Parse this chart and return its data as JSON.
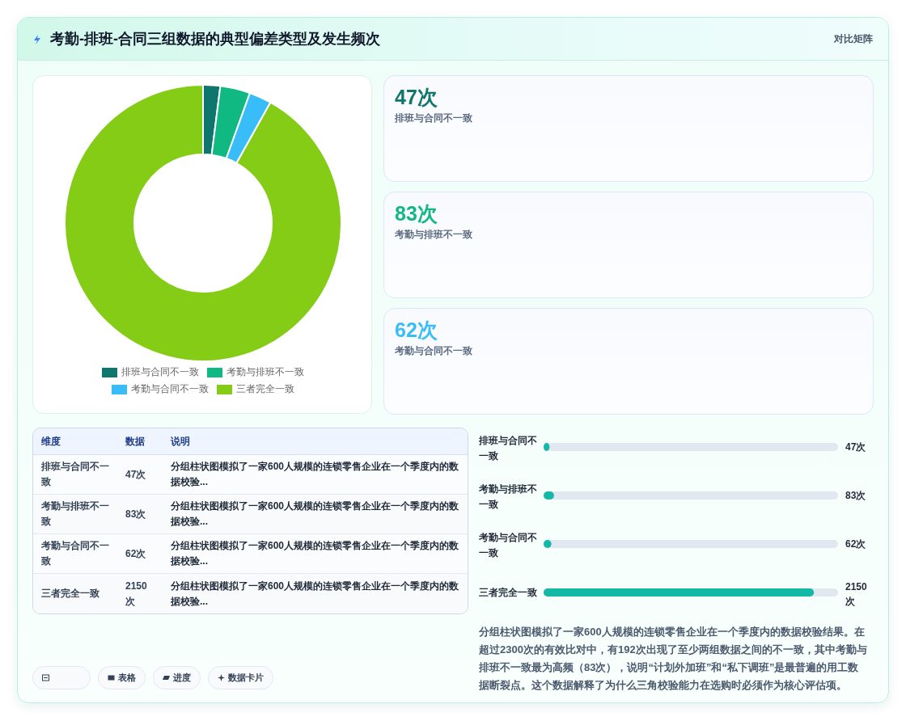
{
  "chart_data": [
    {
      "type": "other",
      "title": "考勤-排班-合同三组数据的典型偏差类型及发生频次",
      "subtitle": "对比矩阵"
    },
    {
      "type": "donut",
      "categories": [
        "排班与合同不一致",
        "考勤与排班不一致",
        "考勤与合同不一致",
        "三者完全一致"
      ],
      "values": [
        2.0,
        3.5,
        2.6,
        91.9
      ],
      "colors": [
        "#0f766e",
        "#10b981",
        "#38bdf8",
        "#84cc16"
      ],
      "legend": "bottom"
    },
    {
      "type": "other",
      "categories": [
        "排班与合同不一致",
        "考勤与排班不一致",
        "考勤与合同不一致"
      ],
      "value_labels": [
        "47次",
        "83次",
        "62次"
      ],
      "colors": [
        "#0f766e",
        "#10b981",
        "#38bdf8"
      ]
    },
    {
      "type": "other",
      "categories": [
        "排班与合同不一致",
        "考勤与排班不一致",
        "考勤与合同不一致",
        "三者完全一致"
      ],
      "value_labels": [
        "47次",
        "83次",
        "62次",
        "2150次"
      ],
      "annotations": [
        "维度",
        "数据",
        "说明",
        "分组柱状图模拟了一家600人规模的连锁零售企业在一个季度内的数据校验...",
        "分组柱状图模拟了一家600人规模的连锁零售企业在一个季度内的数据校验...",
        "分组柱状图模拟了一家600人规模的连锁零售企业在一个季度内的数据校验...",
        "分组柱状图模拟了一家600人规模的连锁零售企业在一个季度内的数据校验..."
      ]
    },
    {
      "type": "bar",
      "orientation": "horizontal",
      "categories": [
        "排班与合同不一致",
        "考勤与排班不一致",
        "考勤与合同不一致",
        "三者完全一致"
      ],
      "values": [
        47,
        83,
        62,
        2150
      ],
      "value_labels": [
        "47次",
        "83次",
        "62次",
        "2150次"
      ],
      "color": "#14b8a6",
      "annotations": [
        "分组柱状图模拟了一家600人规模的连锁零售企业在一个季度内的数据校验结果。在超过2300次的有效比对中，有192次出现了至少两组数据之间的不一致，其中考勤与排班不一致最为高频（83次），说明“计划外加班”和“私下调班”是最普遍的用工数据断裂点。这个数据解释了为什么三角校验能力在选购时必须作为核心评估项。"
      ]
    },
    {
      "type": "other",
      "annotations": [
        "表格",
        "进度",
        "数据卡片"
      ]
    }
  ]
}
